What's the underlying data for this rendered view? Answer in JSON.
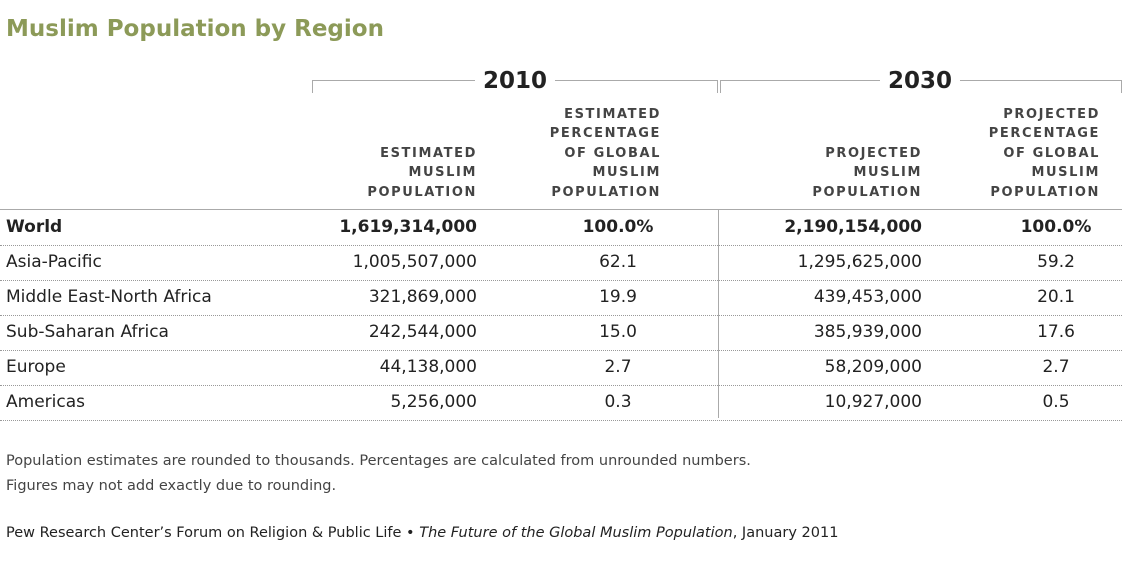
{
  "title": "Muslim Population by Region",
  "groups": [
    "2010",
    "2030"
  ],
  "columns": [
    "ESTIMATED MUSLIM POPULATION",
    "ESTIMATED PERCENTAGE OF GLOBAL MUSLIM POPULATION",
    "PROJECTED MUSLIM POPULATION",
    "PROJECTED PERCENTAGE OF GLOBAL MUSLIM POPULATION"
  ],
  "table": {
    "rows": [
      [
        "World",
        "1,619,314,000",
        "100.0%",
        "2,190,154,000",
        "100.0%"
      ],
      [
        "Asia-Pacific",
        "1,005,507,000",
        "62.1",
        "1,295,625,000",
        "59.2"
      ],
      [
        "Middle East-North Africa",
        "321,869,000",
        "19.9",
        "439,453,000",
        "20.1"
      ],
      [
        "Sub-Saharan Africa",
        "242,544,000",
        "15.0",
        "385,939,000",
        "17.6"
      ],
      [
        "Europe",
        "44,138,000",
        "2.7",
        "58,209,000",
        "2.7"
      ],
      [
        "Americas",
        "5,256,000",
        "0.3",
        "10,927,000",
        "0.5"
      ]
    ]
  },
  "notes": [
    "Population estimates are rounded to thousands. Percentages are calculated from unrounded numbers.",
    "Figures may not add exactly due to rounding."
  ],
  "source": [
    "Pew Research Center’s Forum on Religion & Public Life •",
    "The Future of the Global Muslim Population",
    ", January 2011"
  ]
}
